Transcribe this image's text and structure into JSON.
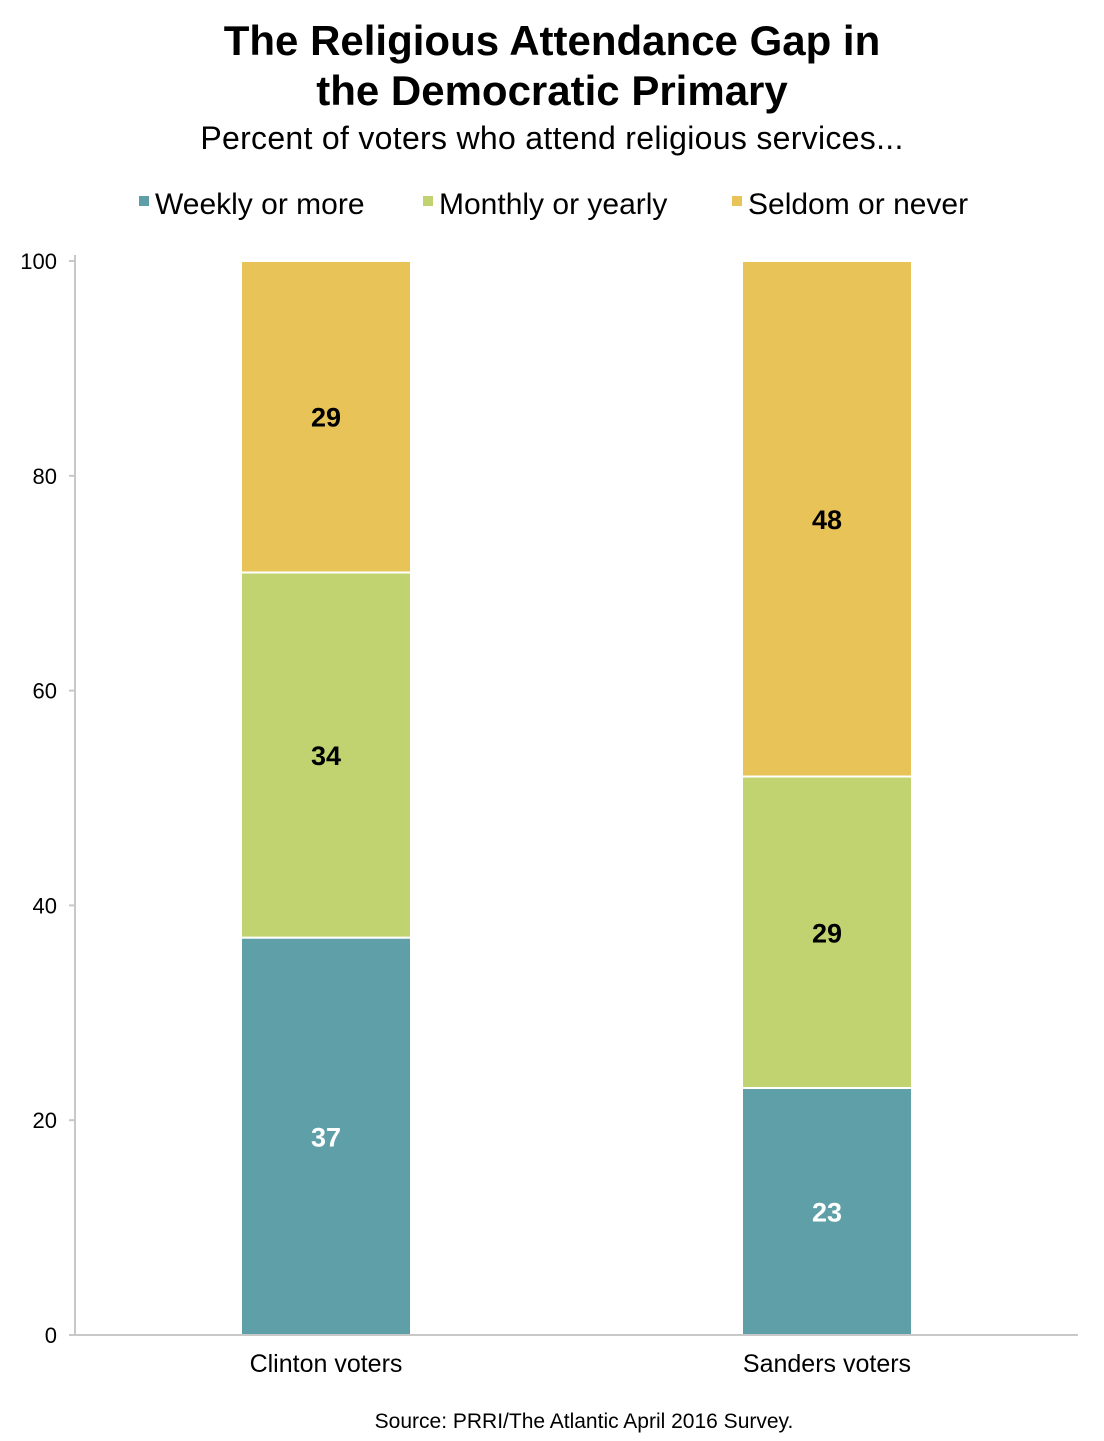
{
  "chart_data": {
    "type": "bar",
    "stacked": true,
    "title_lines": [
      "The Religious Attendance Gap in",
      "the Democratic Primary"
    ],
    "subtitle": "Percent of voters who attend religious services...",
    "source": "Source: PRRI/The Atlantic April 2016 Survey.",
    "categories": [
      "Clinton voters",
      "Sanders voters"
    ],
    "series": [
      {
        "name": "Weekly or more",
        "color": "#5fa0a8",
        "label_color": "#ffffff",
        "values": [
          37,
          23
        ]
      },
      {
        "name": "Monthly or yearly",
        "color": "#c1d370",
        "label_color": "#000000",
        "values": [
          34,
          29
        ]
      },
      {
        "name": "Seldom or never",
        "color": "#e8c357",
        "label_color": "#000000",
        "values": [
          29,
          48
        ]
      }
    ],
    "ylim": [
      0,
      100
    ],
    "yticks": [
      0,
      20,
      40,
      60,
      80,
      100
    ],
    "legend_position": "top",
    "grid": false
  }
}
